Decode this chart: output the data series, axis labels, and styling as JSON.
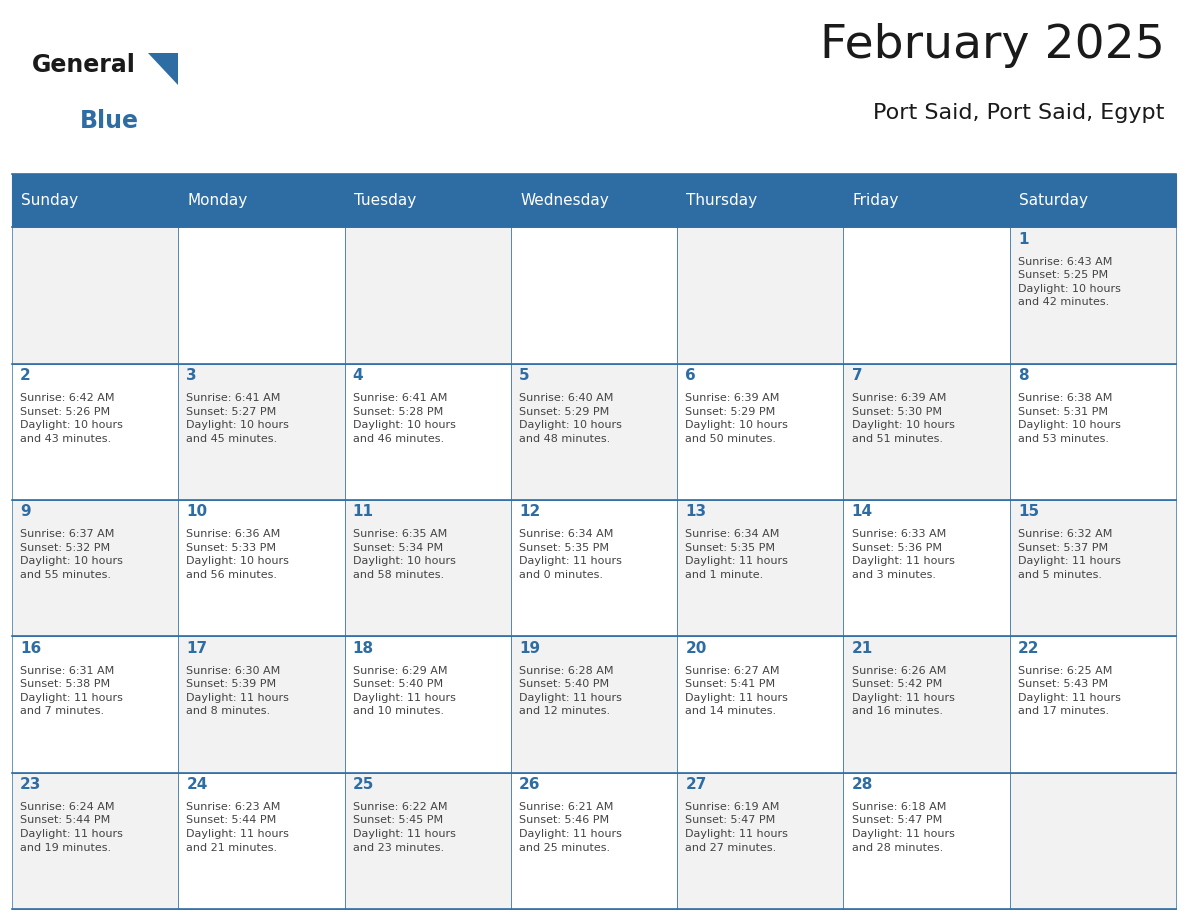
{
  "title": "February 2025",
  "subtitle": "Port Said, Port Said, Egypt",
  "header_bg": "#2E6DA4",
  "header_text_color": "#FFFFFF",
  "cell_bg_even": "#F2F2F2",
  "cell_bg_odd": "#FFFFFF",
  "day_number_color": "#2E6DA4",
  "cell_text_color": "#444444",
  "border_color": "#2E6DA4",
  "days_of_week": [
    "Sunday",
    "Monday",
    "Tuesday",
    "Wednesday",
    "Thursday",
    "Friday",
    "Saturday"
  ],
  "weeks": [
    [
      {
        "day": null,
        "info": null
      },
      {
        "day": null,
        "info": null
      },
      {
        "day": null,
        "info": null
      },
      {
        "day": null,
        "info": null
      },
      {
        "day": null,
        "info": null
      },
      {
        "day": null,
        "info": null
      },
      {
        "day": 1,
        "info": "Sunrise: 6:43 AM\nSunset: 5:25 PM\nDaylight: 10 hours\nand 42 minutes."
      }
    ],
    [
      {
        "day": 2,
        "info": "Sunrise: 6:42 AM\nSunset: 5:26 PM\nDaylight: 10 hours\nand 43 minutes."
      },
      {
        "day": 3,
        "info": "Sunrise: 6:41 AM\nSunset: 5:27 PM\nDaylight: 10 hours\nand 45 minutes."
      },
      {
        "day": 4,
        "info": "Sunrise: 6:41 AM\nSunset: 5:28 PM\nDaylight: 10 hours\nand 46 minutes."
      },
      {
        "day": 5,
        "info": "Sunrise: 6:40 AM\nSunset: 5:29 PM\nDaylight: 10 hours\nand 48 minutes."
      },
      {
        "day": 6,
        "info": "Sunrise: 6:39 AM\nSunset: 5:29 PM\nDaylight: 10 hours\nand 50 minutes."
      },
      {
        "day": 7,
        "info": "Sunrise: 6:39 AM\nSunset: 5:30 PM\nDaylight: 10 hours\nand 51 minutes."
      },
      {
        "day": 8,
        "info": "Sunrise: 6:38 AM\nSunset: 5:31 PM\nDaylight: 10 hours\nand 53 minutes."
      }
    ],
    [
      {
        "day": 9,
        "info": "Sunrise: 6:37 AM\nSunset: 5:32 PM\nDaylight: 10 hours\nand 55 minutes."
      },
      {
        "day": 10,
        "info": "Sunrise: 6:36 AM\nSunset: 5:33 PM\nDaylight: 10 hours\nand 56 minutes."
      },
      {
        "day": 11,
        "info": "Sunrise: 6:35 AM\nSunset: 5:34 PM\nDaylight: 10 hours\nand 58 minutes."
      },
      {
        "day": 12,
        "info": "Sunrise: 6:34 AM\nSunset: 5:35 PM\nDaylight: 11 hours\nand 0 minutes."
      },
      {
        "day": 13,
        "info": "Sunrise: 6:34 AM\nSunset: 5:35 PM\nDaylight: 11 hours\nand 1 minute."
      },
      {
        "day": 14,
        "info": "Sunrise: 6:33 AM\nSunset: 5:36 PM\nDaylight: 11 hours\nand 3 minutes."
      },
      {
        "day": 15,
        "info": "Sunrise: 6:32 AM\nSunset: 5:37 PM\nDaylight: 11 hours\nand 5 minutes."
      }
    ],
    [
      {
        "day": 16,
        "info": "Sunrise: 6:31 AM\nSunset: 5:38 PM\nDaylight: 11 hours\nand 7 minutes."
      },
      {
        "day": 17,
        "info": "Sunrise: 6:30 AM\nSunset: 5:39 PM\nDaylight: 11 hours\nand 8 minutes."
      },
      {
        "day": 18,
        "info": "Sunrise: 6:29 AM\nSunset: 5:40 PM\nDaylight: 11 hours\nand 10 minutes."
      },
      {
        "day": 19,
        "info": "Sunrise: 6:28 AM\nSunset: 5:40 PM\nDaylight: 11 hours\nand 12 minutes."
      },
      {
        "day": 20,
        "info": "Sunrise: 6:27 AM\nSunset: 5:41 PM\nDaylight: 11 hours\nand 14 minutes."
      },
      {
        "day": 21,
        "info": "Sunrise: 6:26 AM\nSunset: 5:42 PM\nDaylight: 11 hours\nand 16 minutes."
      },
      {
        "day": 22,
        "info": "Sunrise: 6:25 AM\nSunset: 5:43 PM\nDaylight: 11 hours\nand 17 minutes."
      }
    ],
    [
      {
        "day": 23,
        "info": "Sunrise: 6:24 AM\nSunset: 5:44 PM\nDaylight: 11 hours\nand 19 minutes."
      },
      {
        "day": 24,
        "info": "Sunrise: 6:23 AM\nSunset: 5:44 PM\nDaylight: 11 hours\nand 21 minutes."
      },
      {
        "day": 25,
        "info": "Sunrise: 6:22 AM\nSunset: 5:45 PM\nDaylight: 11 hours\nand 23 minutes."
      },
      {
        "day": 26,
        "info": "Sunrise: 6:21 AM\nSunset: 5:46 PM\nDaylight: 11 hours\nand 25 minutes."
      },
      {
        "day": 27,
        "info": "Sunrise: 6:19 AM\nSunset: 5:47 PM\nDaylight: 11 hours\nand 27 minutes."
      },
      {
        "day": 28,
        "info": "Sunrise: 6:18 AM\nSunset: 5:47 PM\nDaylight: 11 hours\nand 28 minutes."
      },
      {
        "day": null,
        "info": null
      }
    ]
  ],
  "logo_text_general": "General",
  "logo_text_blue": "Blue",
  "logo_color_general": "#1a1a1a",
  "logo_color_blue": "#2E6DA4",
  "logo_triangle_color": "#2E6DA4",
  "title_fontsize": 34,
  "subtitle_fontsize": 16,
  "dow_fontsize": 11,
  "day_num_fontsize": 11,
  "cell_info_fontsize": 8
}
